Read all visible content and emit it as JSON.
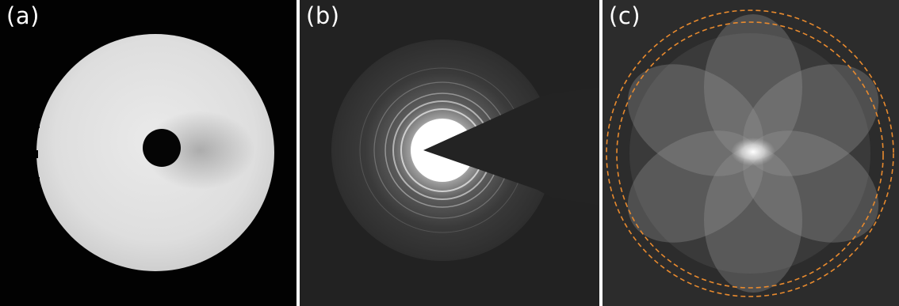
{
  "panels": {
    "a": {
      "label": "(a)",
      "icon": "circular-mask-image-icon"
    },
    "b": {
      "label": "(b)",
      "icon": "diffraction-rings-image-icon"
    },
    "c": {
      "label": "(c)",
      "icon": "petal-pattern-image-icon"
    }
  },
  "colors": {
    "background_a": "#020202",
    "background_b": "#222222",
    "background_c": "#2c2c2c",
    "dashed_circle": "#e88a2e",
    "label_text": "#ffffff"
  }
}
